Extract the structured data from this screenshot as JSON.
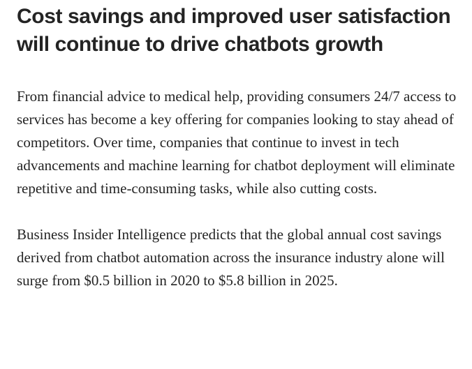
{
  "article": {
    "heading": "Cost savings and improved user satisfaction will continue to drive chatbots growth",
    "paragraphs": [
      "From financial advice to medical help, providing consumers 24/7 access to services has become a key offering for companies looking to stay ahead of competitors. Over time, companies that continue to invest in tech advancements and machine learning for chatbot deployment will eliminate repetitive and time-consuming tasks, while also cutting costs.",
      "Business Insider Intelligence predicts that the global annual cost savings derived from chatbot automation across the insurance industry alone will surge from $0.5 billion in 2020 to $5.8 billion in 2025."
    ]
  }
}
